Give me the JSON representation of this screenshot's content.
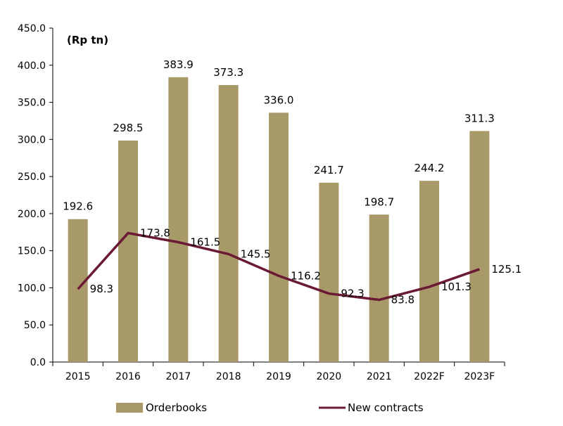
{
  "chart_data": {
    "type": "bar",
    "unit_label": "(Rp tn)",
    "categories": [
      "2015",
      "2016",
      "2017",
      "2018",
      "2019",
      "2020",
      "2021",
      "2022F",
      "2023F"
    ],
    "series": [
      {
        "name": "Orderbooks",
        "type": "bar",
        "color": "#a89968",
        "values": [
          192.6,
          298.5,
          383.9,
          373.3,
          336.0,
          241.7,
          198.7,
          244.2,
          311.3
        ],
        "labels": [
          "192.6",
          "298.5",
          "383.9",
          "373.3",
          "336.0",
          "241.7",
          "198.7",
          "244.2",
          "311.3"
        ]
      },
      {
        "name": "New contracts",
        "type": "line",
        "color": "#6b1a35",
        "values": [
          98.3,
          173.8,
          161.5,
          145.5,
          116.2,
          92.3,
          83.8,
          101.3,
          125.1
        ],
        "labels": [
          "98.3",
          "173.8",
          "161.5",
          "145.5",
          "116.2",
          "92.3",
          "83.8",
          "101.3",
          "125.1"
        ]
      }
    ],
    "yticks": [
      "0.0",
      "50.0",
      "100.0",
      "150.0",
      "200.0",
      "250.0",
      "300.0",
      "350.0",
      "400.0",
      "450.0"
    ],
    "ylim": [
      0,
      450
    ],
    "grid": false,
    "legend": "bottom"
  }
}
